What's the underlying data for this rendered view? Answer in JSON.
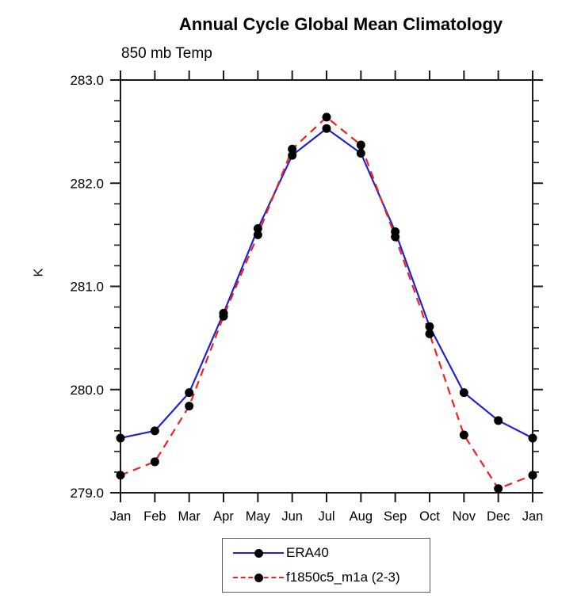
{
  "title": "Annual Cycle Global Mean Climatology",
  "subtitle": "850 mb Temp",
  "y_axis_label": "K",
  "colors": {
    "era40_line": "#2222cc",
    "model_line": "#ee2222",
    "marker": "#000000",
    "axis": "#1a1a1a",
    "text": "#000000"
  },
  "legend": [
    {
      "label": "ERA40",
      "color": "#2222cc",
      "line_style": "solid"
    },
    {
      "label": "f1850c5_m1a (2-3)",
      "color": "#ee2222",
      "line_style": "dashed"
    }
  ],
  "chart_data": {
    "type": "line",
    "title": "Annual Cycle Global Mean Climatology",
    "subtitle": "850 mb Temp",
    "xlabel": "",
    "ylabel": "K",
    "categories": [
      "Jan",
      "Feb",
      "Mar",
      "Apr",
      "May",
      "Jun",
      "Jul",
      "Aug",
      "Sep",
      "Oct",
      "Nov",
      "Dec",
      "Jan"
    ],
    "series": [
      {
        "name": "ERA40",
        "color": "#2222cc",
        "dash": "solid",
        "marker": "black-dot",
        "values": [
          279.53,
          279.6,
          279.97,
          280.74,
          281.56,
          282.27,
          282.53,
          282.29,
          281.53,
          280.61,
          279.97,
          279.7,
          279.53
        ]
      },
      {
        "name": "f1850c5_m1a (2-3)",
        "color": "#ee2222",
        "dash": "dashed",
        "marker": "black-dot",
        "values": [
          279.17,
          279.3,
          279.84,
          280.71,
          281.5,
          282.33,
          282.64,
          282.37,
          281.48,
          280.54,
          279.56,
          279.04,
          279.17
        ]
      }
    ],
    "ylim": [
      279.0,
      283.0
    ],
    "ytick_major": [
      279.0,
      280.0,
      281.0,
      282.0,
      283.0
    ],
    "ytick_major_labels": [
      "279.0",
      "280.0",
      "281.0",
      "282.0",
      "283.0"
    ],
    "ytick_minor_step": 0.2,
    "grid": false,
    "legend_position": "bottom-center",
    "tick_style": "outward-all-sides"
  }
}
